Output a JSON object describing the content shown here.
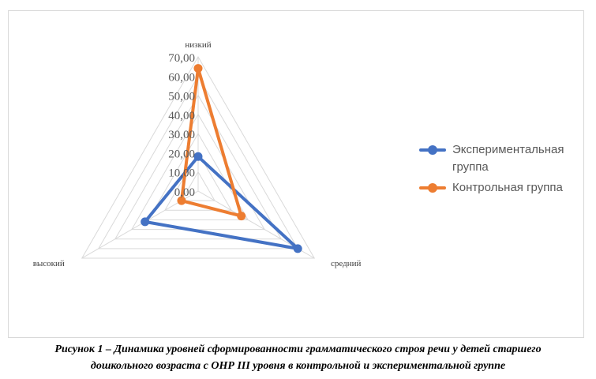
{
  "chart_data": {
    "type": "radar",
    "axes": [
      "низкий",
      "средний",
      "высокий"
    ],
    "ticks": [
      "0,00",
      "10,00",
      "20,00",
      "30,00",
      "40,00",
      "50,00",
      "60,00",
      "70,00"
    ],
    "rlim": [
      0,
      70
    ],
    "grid": true,
    "legend_position": "right",
    "series": [
      {
        "name": "Экспериментальная группа",
        "color": "#4472c4",
        "values": [
          18,
          60,
          32
        ]
      },
      {
        "name": "Контрольная группа",
        "color": "#ed7d31",
        "values": [
          64,
          26,
          10
        ]
      }
    ]
  },
  "caption": {
    "line1": "Рисунок 1 – Динамика уровней сформированности грамматического строя речи у детей старшего",
    "line2": "дошкольного возраста с ОНР III уровня в контрольной и экспериментальной группе"
  }
}
